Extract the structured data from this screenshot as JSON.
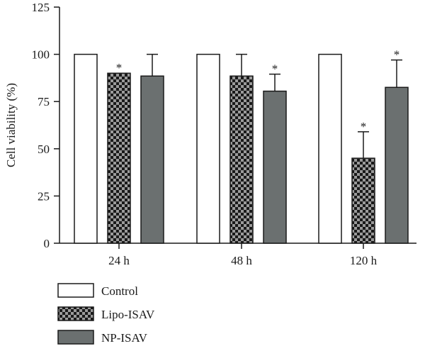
{
  "chart_data": {
    "type": "bar",
    "ylabel": "Cell viability (%)",
    "xlabel": "",
    "ylim": [
      0,
      125
    ],
    "yticks": [
      "0",
      "25",
      "50",
      "75",
      "100",
      "125"
    ],
    "categories": [
      "24 h",
      "48 h",
      "120 h"
    ],
    "series": [
      {
        "name": "Control",
        "values": [
          100,
          100,
          100
        ],
        "error": [
          0,
          0,
          0
        ],
        "significant": [
          false,
          false,
          false
        ],
        "fill": "#ffffff",
        "pattern": "none"
      },
      {
        "name": "Lipo-ISAV",
        "values": [
          90,
          88.5,
          45
        ],
        "error": [
          0,
          11.5,
          14
        ],
        "significant": [
          true,
          false,
          true
        ],
        "fill": "#1a1a1a",
        "pattern": "checker"
      },
      {
        "name": "NP-ISAV",
        "values": [
          88.5,
          80.5,
          82.5
        ],
        "error": [
          11.5,
          9,
          14.5
        ],
        "significant": [
          false,
          true,
          true
        ],
        "fill": "#6b7070",
        "pattern": "none"
      }
    ],
    "significance_marker": "*",
    "legend_position": "bottom-left",
    "grid": false,
    "colors": {
      "axis": "#1a1a1a",
      "checker_light": "#9a9a9a",
      "checker_dark": "#1a1a1a"
    }
  }
}
